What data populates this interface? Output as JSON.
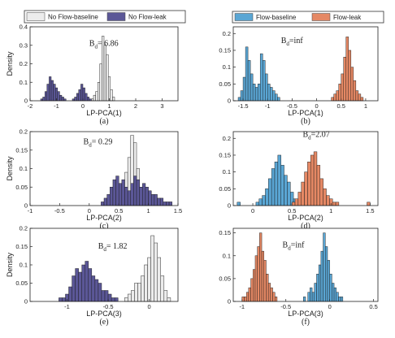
{
  "legends": [
    {
      "position": "top-left",
      "entries": [
        {
          "name": "No Flow-baseline",
          "color": "#ececec"
        },
        {
          "name": "No Flow-leak",
          "color": "#5b5797"
        }
      ]
    },
    {
      "position": "top-right",
      "entries": [
        {
          "name": "Flow-baseline",
          "color": "#5aa6d4"
        },
        {
          "name": "Flow-leak",
          "color": "#e58864"
        }
      ]
    }
  ],
  "chart_data": [
    {
      "type": "histogram",
      "caption": "(a)",
      "xlabel": "LP-PCA(1)",
      "ylabel": "Density",
      "xlim": [
        -2,
        3.6
      ],
      "ylim": [
        0,
        0.4
      ],
      "xticks": [
        "-2",
        "-1",
        "0",
        "1",
        "2",
        "3"
      ],
      "yticks": [
        "0",
        "0.1",
        "0.2",
        "0.3",
        "0.4"
      ],
      "annotation": {
        "prefix": "B",
        "sub": "d",
        "rest": "= 6.86"
      },
      "bin_width": 0.08,
      "series": [
        {
          "name": "No Flow-baseline",
          "color": "#ececec",
          "start": 0.32,
          "values": [
            0.01,
            0.03,
            0.05,
            0.1,
            0.2,
            0.35,
            0.3,
            0.25,
            0.13,
            0.06,
            0.02
          ]
        },
        {
          "name": "No Flow-leak",
          "color": "#5b5797",
          "start": -1.6,
          "values": [
            0.01,
            0.02,
            0.05,
            0.09,
            0.13,
            0.11,
            0.09,
            0.07,
            0.05,
            0.03,
            0.02,
            0.01,
            0.0,
            0.0,
            0.0,
            0.01,
            0.02,
            0.04,
            0.06,
            0.09,
            0.07,
            0.04,
            0.02,
            0.01
          ]
        }
      ]
    },
    {
      "type": "histogram",
      "caption": "(b)",
      "xlabel": "LP-PCA(1)",
      "ylabel": "",
      "xlim": [
        -1.7,
        1.25
      ],
      "ylim": [
        0,
        0.22
      ],
      "xticks": [
        "-1.5",
        "-1",
        "-0.5",
        "0",
        "0.5",
        "1"
      ],
      "yticks": [
        "0",
        "0.05",
        "0.1",
        "0.15",
        "0.2"
      ],
      "annotation": {
        "prefix": "B",
        "sub": "d",
        "rest": "=inf"
      },
      "bin_width": 0.05,
      "series": [
        {
          "name": "Flow-baseline",
          "color": "#5aa6d4",
          "start": -1.6,
          "values": [
            0.01,
            0.03,
            0.07,
            0.16,
            0.12,
            0.08,
            0.05,
            0.04,
            0.05,
            0.14,
            0.12,
            0.08,
            0.05,
            0.04,
            0.03,
            0.02,
            0.01
          ]
        },
        {
          "name": "Flow-leak",
          "color": "#e58864",
          "start": 0.3,
          "values": [
            0.01,
            0.02,
            0.03,
            0.05,
            0.08,
            0.13,
            0.19,
            0.15,
            0.1,
            0.06,
            0.03,
            0.02,
            0.01
          ]
        }
      ]
    },
    {
      "type": "histogram",
      "caption": "(c)",
      "xlabel": "LP-PCA(2)",
      "ylabel": "Density",
      "xlim": [
        -1,
        1.5
      ],
      "ylim": [
        0,
        0.2
      ],
      "xticks": [
        "-1",
        "-0.5",
        "0",
        "0.5",
        "1",
        "1.5"
      ],
      "yticks": [
        "0",
        "0.05",
        "0.1",
        "0.15",
        "0.2"
      ],
      "annotation": {
        "prefix": "B",
        "sub": "d",
        "rest": "= 0.29"
      },
      "bin_width": 0.05,
      "series": [
        {
          "name": "No Flow-baseline",
          "color": "#ececec",
          "start": 0.45,
          "values": [
            0.01,
            0.03,
            0.06,
            0.09,
            0.13,
            0.19,
            0.17,
            0.1,
            0.05,
            0.03,
            0.01
          ]
        },
        {
          "name": "No Flow-leak",
          "color": "#5b5797",
          "start": 0.2,
          "values": [
            0.01,
            0.02,
            0.03,
            0.05,
            0.07,
            0.08,
            0.06,
            0.07,
            0.05,
            0.04,
            0.06,
            0.08,
            0.07,
            0.05,
            0.06,
            0.05,
            0.04,
            0.03,
            0.03,
            0.02,
            0.02,
            0.01,
            0.01,
            0.01
          ]
        }
      ]
    },
    {
      "type": "histogram",
      "caption": "(d)",
      "xlabel": "LP-PCA(2)",
      "ylabel": "",
      "xlim": [
        -0.25,
        1.6
      ],
      "ylim": [
        0,
        0.22
      ],
      "xticks": [
        "0",
        "0.5",
        "1",
        "1.5"
      ],
      "yticks": [
        "0",
        "0.05",
        "0.1",
        "0.15",
        "0.2"
      ],
      "annotation": {
        "prefix": "B",
        "sub": "d",
        "rest": "=2.07"
      },
      "bin_width": 0.04,
      "series": [
        {
          "name": "Flow-baseline",
          "color": "#5aa6d4",
          "start": -0.2,
          "values": [
            0.01,
            0.0,
            0.0,
            0.0,
            0.0,
            0.0,
            0.01,
            0.02,
            0.03,
            0.05,
            0.08,
            0.11,
            0.13,
            0.15,
            0.12,
            0.09,
            0.07,
            0.04,
            0.02,
            0.01
          ]
        },
        {
          "name": "Flow-leak",
          "color": "#e58864",
          "start": 0.5,
          "values": [
            0.01,
            0.02,
            0.04,
            0.07,
            0.1,
            0.13,
            0.15,
            0.16,
            0.12,
            0.08,
            0.05,
            0.03,
            0.02,
            0.01,
            0.01,
            0.0,
            0.0,
            0.0,
            0.0,
            0.0,
            0.0,
            0.0,
            0.0,
            0.0,
            0.01
          ]
        }
      ]
    },
    {
      "type": "histogram",
      "caption": "(e)",
      "xlabel": "LP-PCA(3)",
      "ylabel": "Density",
      "xlim": [
        -1.45,
        0.35
      ],
      "ylim": [
        0,
        0.2
      ],
      "xticks": [
        "-1",
        "-0.5",
        "0"
      ],
      "yticks": [
        "0",
        "0.05",
        "0.1",
        "0.15",
        "0.2"
      ],
      "annotation": {
        "prefix": "B",
        "sub": "d",
        "rest": "= 1.82"
      },
      "bin_width": 0.04,
      "series": [
        {
          "name": "No Flow-baseline",
          "color": "#ececec",
          "start": -0.3,
          "values": [
            0.01,
            0.02,
            0.03,
            0.05,
            0.05,
            0.07,
            0.1,
            0.12,
            0.18,
            0.16,
            0.12,
            0.07,
            0.03,
            0.01
          ]
        },
        {
          "name": "No Flow-leak",
          "color": "#5b5797",
          "start": -1.1,
          "values": [
            0.01,
            0.01,
            0.02,
            0.04,
            0.07,
            0.09,
            0.08,
            0.1,
            0.11,
            0.09,
            0.07,
            0.06,
            0.05,
            0.03,
            0.03,
            0.02,
            0.01,
            0.01
          ]
        }
      ]
    },
    {
      "type": "histogram",
      "caption": "(f)",
      "xlabel": "LP-PCA(3)",
      "ylabel": "",
      "xlim": [
        -1.1,
        0.55
      ],
      "ylim": [
        0,
        0.16
      ],
      "xticks": [
        "-1",
        "-0.5",
        "0",
        "0.5"
      ],
      "yticks": [
        "0",
        "0.05",
        "0.1",
        "0.15"
      ],
      "annotation": {
        "prefix": "B",
        "sub": "d",
        "rest": "=inf"
      },
      "bin_width": 0.025,
      "series": [
        {
          "name": "Flow-baseline",
          "color": "#5aa6d4",
          "start": -0.3,
          "values": [
            0.01,
            0.0,
            0.02,
            0.03,
            0.02,
            0.04,
            0.06,
            0.08,
            0.11,
            0.15,
            0.12,
            0.09,
            0.06,
            0.04,
            0.03,
            0.02,
            0.01,
            0.01
          ]
        },
        {
          "name": "Flow-leak",
          "color": "#e58864",
          "start": -1.0,
          "values": [
            0.01,
            0.01,
            0.02,
            0.03,
            0.05,
            0.07,
            0.1,
            0.12,
            0.15,
            0.11,
            0.09,
            0.06,
            0.04,
            0.03,
            0.02,
            0.01
          ]
        }
      ]
    }
  ]
}
